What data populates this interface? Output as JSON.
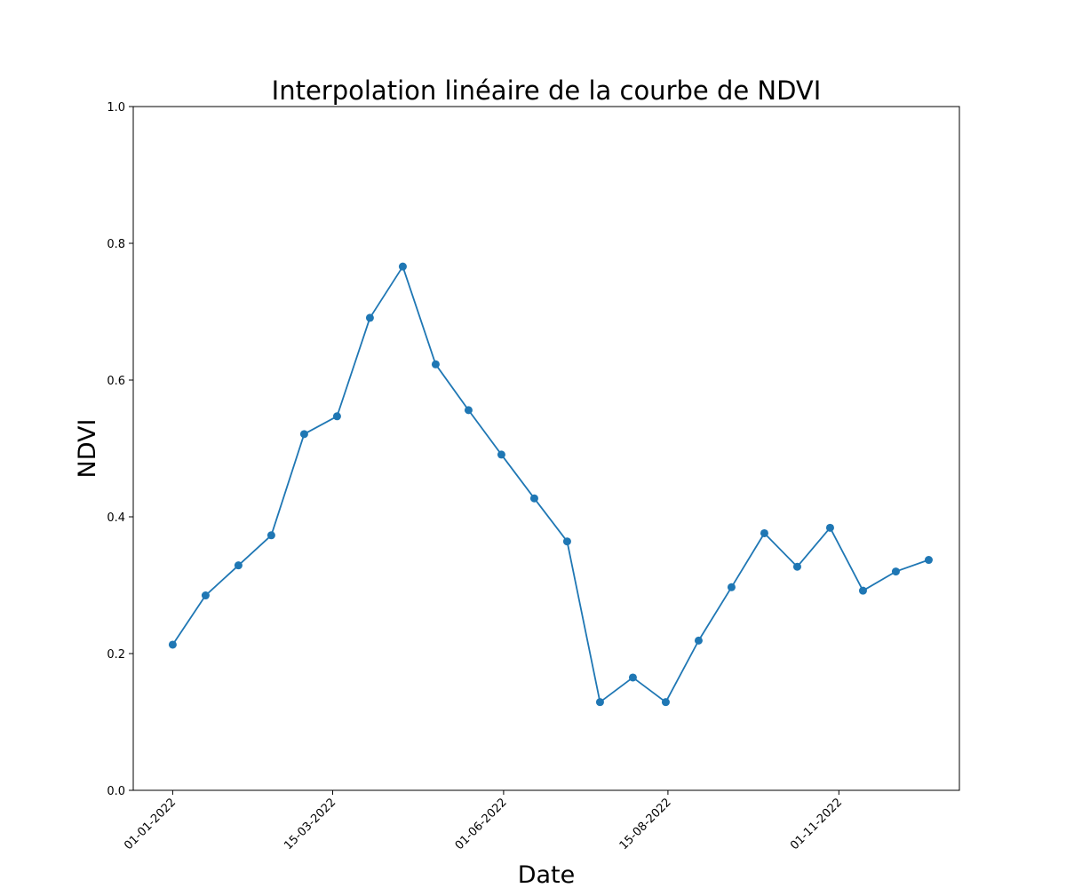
{
  "chart_data": {
    "type": "line",
    "title": "Interpolation linéaire de la courbe de NDVI",
    "xlabel": "Date",
    "ylabel": "NDVI",
    "ylim": [
      0.0,
      1.0
    ],
    "y_ticks": [
      0.0,
      0.2,
      0.4,
      0.6,
      0.8,
      1.0
    ],
    "y_tick_labels": [
      "0.0",
      "0.2",
      "0.4",
      "0.6",
      "0.8",
      "1.0"
    ],
    "x_ticks": [
      "2022-01-01",
      "2022-03-15",
      "2022-06-01",
      "2022-08-15",
      "2022-11-01"
    ],
    "x_tick_labels": [
      "01-01-2022",
      "15-03-2022",
      "01-06-2022",
      "15-08-2022",
      "01-11-2022"
    ],
    "xlim": [
      "2021-12-14",
      "2022-12-26"
    ],
    "grid": false,
    "color": "#1f77b4",
    "marker": "circle",
    "series": [
      {
        "x": [
          "2022-01-01",
          "2022-01-16",
          "2022-01-31",
          "2022-02-15",
          "2022-03-02",
          "2022-03-17",
          "2022-04-01",
          "2022-04-16",
          "2022-05-01",
          "2022-05-16",
          "2022-05-31",
          "2022-06-15",
          "2022-06-30",
          "2022-07-15",
          "2022-07-30",
          "2022-08-14",
          "2022-08-29",
          "2022-09-13",
          "2022-09-28",
          "2022-10-13",
          "2022-10-28",
          "2022-11-12",
          "2022-11-27",
          "2022-12-12"
        ],
        "y": [
          0.213,
          0.285,
          0.329,
          0.373,
          0.521,
          0.547,
          0.691,
          0.766,
          0.623,
          0.556,
          0.491,
          0.427,
          0.364,
          0.129,
          0.165,
          0.129,
          0.219,
          0.297,
          0.376,
          0.327,
          0.384,
          0.292,
          0.32,
          0.337
        ]
      }
    ]
  }
}
